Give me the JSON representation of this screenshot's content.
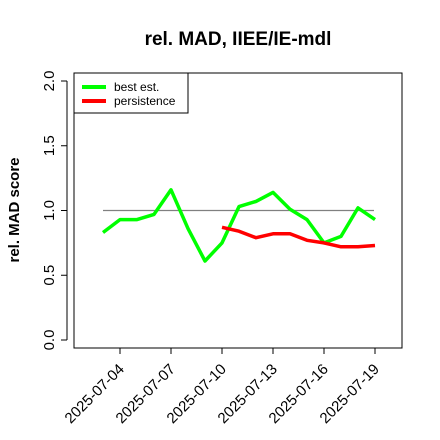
{
  "chart_data": {
    "type": "line",
    "title": "rel. MAD, IIEE/IE-mdl",
    "xlabel": "",
    "ylabel": "rel. MAD score",
    "ylim": [
      0.0,
      2.0
    ],
    "y_ticks": [
      "0.0",
      "0.5",
      "1.0",
      "1.5",
      "2.0"
    ],
    "x_ticks": [
      "2025-07-04",
      "2025-07-07",
      "2025-07-10",
      "2025-07-13",
      "2025-07-16",
      "2025-07-19"
    ],
    "grid": false,
    "legend_position": "top-left",
    "reference_line": 1.0,
    "colors": {
      "best_est": "#00ff00",
      "persistence": "#ff0000",
      "reference": "#808080"
    },
    "series": [
      {
        "name": "best est.",
        "color": "#00ff00",
        "x": [
          "2025-07-03",
          "2025-07-04",
          "2025-07-05",
          "2025-07-06",
          "2025-07-07",
          "2025-07-08",
          "2025-07-09",
          "2025-07-10",
          "2025-07-11",
          "2025-07-12",
          "2025-07-13",
          "2025-07-14",
          "2025-07-15",
          "2025-07-16",
          "2025-07-17",
          "2025-07-18",
          "2025-07-19"
        ],
        "values": [
          0.83,
          0.93,
          0.93,
          0.97,
          1.16,
          0.86,
          0.61,
          0.75,
          1.03,
          1.07,
          1.14,
          1.01,
          0.93,
          0.75,
          0.8,
          1.02,
          0.93
        ]
      },
      {
        "name": "persistence",
        "color": "#ff0000",
        "x": [
          "2025-07-10",
          "2025-07-11",
          "2025-07-12",
          "2025-07-13",
          "2025-07-14",
          "2025-07-15",
          "2025-07-16",
          "2025-07-17",
          "2025-07-18",
          "2025-07-19"
        ],
        "values": [
          0.87,
          0.84,
          0.79,
          0.82,
          0.82,
          0.77,
          0.75,
          0.72,
          0.72,
          0.73
        ]
      }
    ]
  }
}
